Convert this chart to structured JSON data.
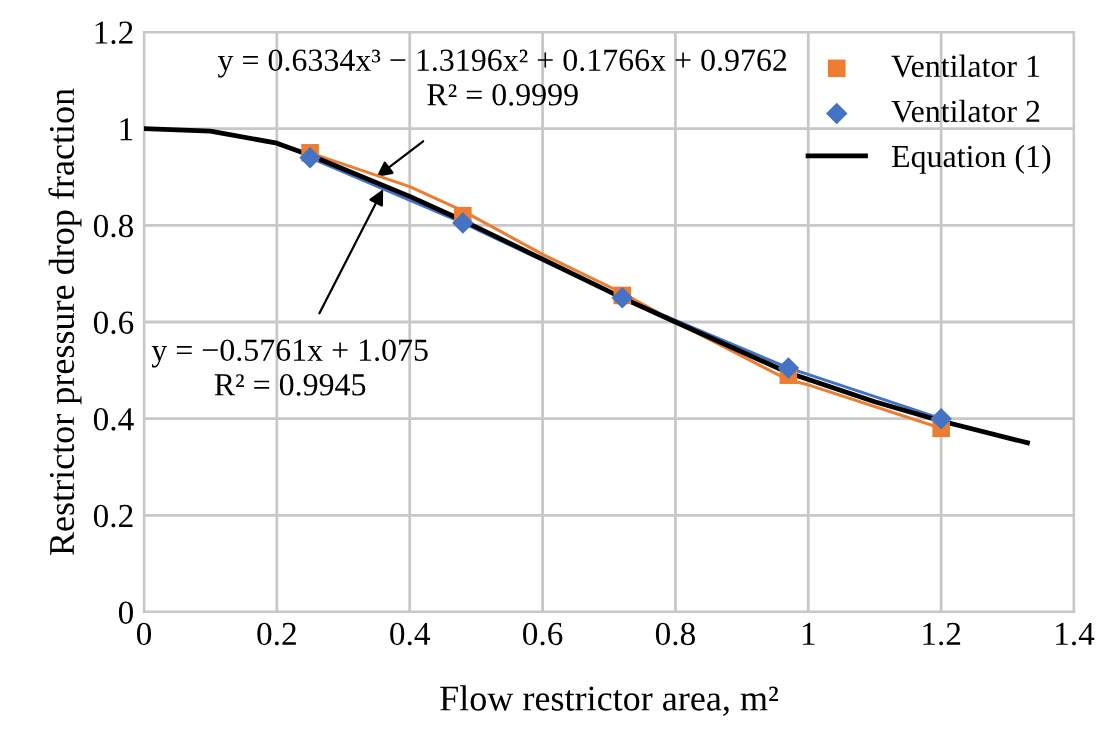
{
  "chart_data": {
    "type": "scatter",
    "xlabel": "Flow restrictor area, m²",
    "ylabel": "Restrictor pressure drop fraction",
    "xlim": [
      0,
      1.4
    ],
    "xticks": [
      0,
      0.2,
      0.4,
      0.6,
      0.8,
      1,
      1.2,
      1.4
    ],
    "ylim": [
      0,
      1.2
    ],
    "yticks": [
      0,
      0.2,
      0.4,
      0.6,
      0.8,
      1,
      1.2
    ],
    "grid": true,
    "legend": "top right",
    "series": [
      {
        "name": "Ventilator 1",
        "color": "#ed7d31",
        "x": [
          0.25,
          0.48,
          0.72,
          0.97,
          1.2
        ],
        "values": [
          0.95,
          0.82,
          0.655,
          0.49,
          0.38
        ],
        "marker": "square"
      },
      {
        "name": "Ventilator 2",
        "color": "#4472c4",
        "x": [
          0.25,
          0.48,
          0.72,
          0.97,
          1.2
        ],
        "values": [
          0.94,
          0.805,
          0.65,
          0.505,
          0.4
        ],
        "marker": "diamond"
      },
      {
        "type": "line",
        "color": "#ed7d31",
        "x": [
          0.25,
          0.4,
          0.48,
          0.6,
          0.72,
          0.8,
          0.97,
          1.0,
          1.2
        ],
        "values": [
          0.95,
          0.88,
          0.83,
          0.74,
          0.66,
          0.6,
          0.48,
          0.47,
          0.38
        ],
        "marker": "none",
        "line_style": "solid"
      },
      {
        "type": "line",
        "color": "#4472c4",
        "x": [
          0.25,
          0.48,
          0.72,
          0.97,
          1.2
        ],
        "values": [
          0.94,
          0.805,
          0.65,
          0.505,
          0.4
        ],
        "marker": "none",
        "line_style": "solid"
      },
      {
        "type": "line",
        "name": "Equation (1)",
        "color": "#000000",
        "x": [
          0,
          0.1,
          0.2,
          0.25,
          0.4,
          0.48,
          0.6,
          0.72,
          0.8,
          0.97,
          1.1,
          1.2,
          1.33
        ],
        "values": [
          1.0,
          0.995,
          0.97,
          0.945,
          0.86,
          0.81,
          0.73,
          0.65,
          0.6,
          0.495,
          0.435,
          0.395,
          0.35
        ],
        "marker": "none",
        "line_style": "solid"
      }
    ],
    "annotations": [
      {
        "text": "y = 0.6334x³ − 1.3196x² + 0.1766x + 0.9762\nR² = 0.9999",
        "x": 0.35,
        "y": 0.9
      },
      {
        "text": "y = −0.5761x + 1.075\nR² = 0.9945",
        "x": 0.36,
        "y": 0.875
      }
    ]
  }
}
